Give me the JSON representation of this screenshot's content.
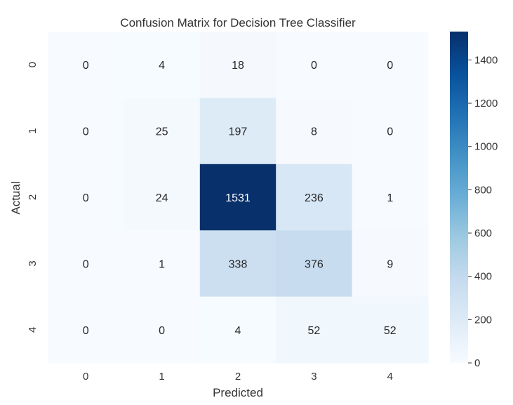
{
  "chart_data": {
    "type": "heatmap",
    "title": "Confusion Matrix for Decision Tree Classifier",
    "xlabel": "Predicted",
    "ylabel": "Actual",
    "x_categories": [
      "0",
      "1",
      "2",
      "3",
      "4"
    ],
    "y_categories": [
      "0",
      "1",
      "2",
      "3",
      "4"
    ],
    "matrix": [
      [
        0,
        4,
        18,
        0,
        0
      ],
      [
        0,
        25,
        197,
        8,
        0
      ],
      [
        0,
        24,
        1531,
        236,
        1
      ],
      [
        0,
        1,
        338,
        376,
        9
      ],
      [
        0,
        0,
        4,
        52,
        52
      ]
    ],
    "colormap": "Blues",
    "colorbar": {
      "range": [
        0,
        1531
      ],
      "ticks": [
        0,
        200,
        400,
        600,
        800,
        1000,
        1200,
        1400
      ],
      "tick_labels": [
        "0",
        "200",
        "400",
        "600",
        "800",
        "1000",
        "1200",
        "1400"
      ]
    },
    "colors": {
      "low": "#f7fbff",
      "high": "#08306b",
      "text_dark": "#262626",
      "text_light": "#ffffff"
    }
  }
}
